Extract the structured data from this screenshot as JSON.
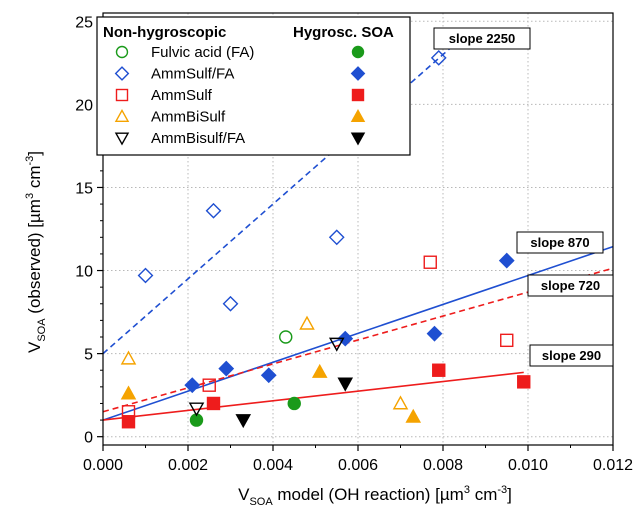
{
  "chart_data": {
    "type": "scatter",
    "title": "",
    "xlabel": {
      "main": "V",
      "sub": "SOA",
      "rest": " model (OH reaction) [µm",
      "sup": "3",
      "mid": " cm",
      "sup2": "-3",
      "end": "]"
    },
    "ylabel": {
      "main": "V",
      "sub": "SOA",
      "rest": " (observed)  [µm",
      "sup": "3",
      "mid": " cm",
      "sup2": "-3",
      "end": "]"
    },
    "xlim": [
      0,
      0.012
    ],
    "ylim": [
      -0.5,
      25.5
    ],
    "xticks": [
      0.0,
      0.002,
      0.004,
      0.006,
      0.008,
      0.01,
      0.012
    ],
    "xtick_labels": [
      "0.000",
      "0.002",
      "0.004",
      "0.006",
      "0.008",
      "0.010",
      "0.012"
    ],
    "yticks": [
      0,
      5,
      10,
      15,
      20,
      25
    ],
    "ytick_labels": [
      "0",
      "5",
      "10",
      "15",
      "20",
      "25"
    ],
    "grid": true,
    "legend": {
      "placement": "top-left",
      "header_left": "Non-hygroscopic",
      "header_right": "Hygrosc. SOA",
      "entries": [
        {
          "label": "Fulvic acid (FA)",
          "marker": "circle",
          "color": "#1a9a1a"
        },
        {
          "label": "AmmSulf/FA",
          "marker": "diamond",
          "color": "#1f4fd1"
        },
        {
          "label": "AmmSulf",
          "marker": "square",
          "color": "#ee1c1c"
        },
        {
          "label": "AmmBiSulf",
          "marker": "triangle-up",
          "color": "#f5a300"
        },
        {
          "label": "AmmBisulf/FA",
          "marker": "triangle-down",
          "color": "#000000"
        }
      ]
    },
    "series": [
      {
        "label": "Fulvic acid (FA)",
        "marker": "circle",
        "filled": false,
        "color": "#1a9a1a",
        "x": [
          0.0043
        ],
        "y": [
          6.0
        ]
      },
      {
        "label": "Fulvic acid (FA)",
        "marker": "circle",
        "filled": true,
        "color": "#1a9a1a",
        "x": [
          0.0022,
          0.0045
        ],
        "y": [
          1.0,
          2.0
        ]
      },
      {
        "label": "AmmSulf/FA",
        "marker": "diamond",
        "filled": false,
        "color": "#1f4fd1",
        "x": [
          0.001,
          0.0026,
          0.003,
          0.0055,
          0.0079
        ],
        "y": [
          9.7,
          13.6,
          8.0,
          12.0,
          22.8
        ]
      },
      {
        "label": "AmmSulf/FA",
        "marker": "diamond",
        "filled": true,
        "color": "#1f4fd1",
        "x": [
          0.0021,
          0.0029,
          0.0039,
          0.0057,
          0.0078,
          0.0095
        ],
        "y": [
          3.1,
          4.1,
          3.7,
          5.9,
          6.2,
          10.6
        ]
      },
      {
        "label": "AmmSulf",
        "marker": "square",
        "filled": false,
        "color": "#ee1c1c",
        "x": [
          0.0006,
          0.0025,
          0.0077,
          0.0095
        ],
        "y": [
          1.5,
          3.1,
          10.5,
          5.8
        ]
      },
      {
        "label": "AmmSulf",
        "marker": "square",
        "filled": true,
        "color": "#ee1c1c",
        "x": [
          0.0006,
          0.0026,
          0.0079,
          0.0099
        ],
        "y": [
          0.9,
          2.0,
          4.0,
          3.3
        ]
      },
      {
        "label": "AmmBiSulf",
        "marker": "triangle-up",
        "filled": false,
        "color": "#f5a300",
        "x": [
          0.0006,
          0.0048,
          0.007
        ],
        "y": [
          4.7,
          6.8,
          2.0
        ]
      },
      {
        "label": "AmmBiSulf",
        "marker": "triangle-up",
        "filled": true,
        "color": "#f5a300",
        "x": [
          0.0006,
          0.0051,
          0.0073
        ],
        "y": [
          2.6,
          3.9,
          1.2
        ]
      },
      {
        "label": "AmmBisulf/FA",
        "marker": "triangle-down",
        "filled": false,
        "color": "#000000",
        "x": [
          0.0022,
          0.0055
        ],
        "y": [
          1.7,
          5.6
        ]
      },
      {
        "label": "AmmBisulf/FA",
        "marker": "triangle-down",
        "filled": true,
        "color": "#000000",
        "x": [
          0.0033,
          0.0057
        ],
        "y": [
          1.0,
          3.2
        ]
      }
    ],
    "fit_lines": [
      {
        "label": "slope 2250",
        "color": "#1f4fd1",
        "dash": "dashed",
        "intercept": 5.0,
        "slope": 2250,
        "x_range": [
          0,
          0.0082
        ]
      },
      {
        "label": "slope 870",
        "color": "#1f4fd1",
        "dash": "solid",
        "intercept": 1.0,
        "slope": 870,
        "x_range": [
          0,
          0.012
        ]
      },
      {
        "label": "slope 720",
        "color": "#ee1c1c",
        "dash": "dashed",
        "intercept": 1.5,
        "slope": 720,
        "x_range": [
          0,
          0.012
        ]
      },
      {
        "label": "slope 290",
        "color": "#ee1c1c",
        "dash": "solid",
        "intercept": 1.0,
        "slope": 290,
        "x_range": [
          0,
          0.0099
        ]
      }
    ]
  }
}
